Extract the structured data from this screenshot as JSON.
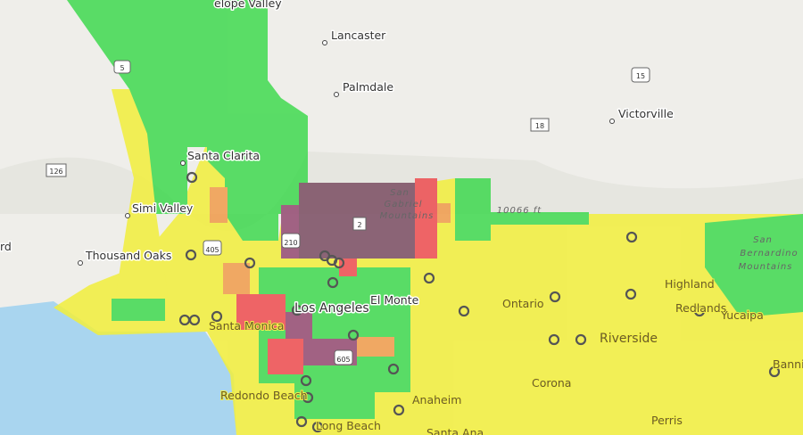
{
  "places": [
    "Lancaster",
    "Palmdale",
    "Victorville",
    "Santa Clarita",
    "Simi Valley",
    "Thousand Oaks",
    "rd",
    "Los Angeles",
    "El Monte",
    "Ontario",
    "Highland",
    "Redlands",
    "Yucaipa",
    "Riverside",
    "Santa Monica",
    "Corona",
    "Redondo Beach",
    "Anaheim",
    "Long Beach",
    "Perris",
    "Santa Ana",
    "Bannin",
    "elope Valley"
  ],
  "mountains": [
    [
      "San",
      "Gabriel",
      "Mountains"
    ],
    [
      "San",
      "Bernardino",
      "Mountains"
    ]
  ],
  "elevation": "10066 ft",
  "highways": [
    "5",
    "15",
    "18",
    "126",
    "405",
    "210",
    "2",
    "605"
  ]
}
